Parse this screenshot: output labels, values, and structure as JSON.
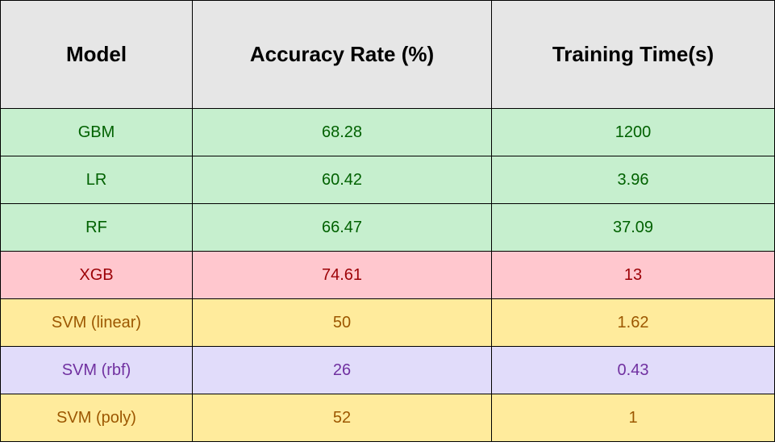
{
  "chart_data": {
    "type": "table",
    "columns": [
      "Model",
      "Accuracy Rate (%)",
      "Training Time(s)"
    ],
    "rows": [
      {
        "cells": [
          "GBM",
          "68.28",
          "1200"
        ],
        "bg": "#c6efce",
        "fg": "#006100"
      },
      {
        "cells": [
          "LR",
          "60.42",
          "3.96"
        ],
        "bg": "#c6efce",
        "fg": "#006100"
      },
      {
        "cells": [
          "RF",
          "66.47",
          "37.09"
        ],
        "bg": "#c6efce",
        "fg": "#006100"
      },
      {
        "cells": [
          "XGB",
          "74.61",
          "13"
        ],
        "bg": "#ffc7ce",
        "fg": "#9c0006"
      },
      {
        "cells": [
          "SVM (linear)",
          "50",
          "1.62"
        ],
        "bg": "#ffeb9c",
        "fg": "#9c5700"
      },
      {
        "cells": [
          "SVM (rbf)",
          "26",
          "0.43"
        ],
        "bg": "#e1dcfa",
        "fg": "#7030a0"
      },
      {
        "cells": [
          "SVM (poly)",
          "52",
          "1"
        ],
        "bg": "#ffeb9c",
        "fg": "#9c5700"
      }
    ],
    "header_bg": "#e6e6e6"
  }
}
